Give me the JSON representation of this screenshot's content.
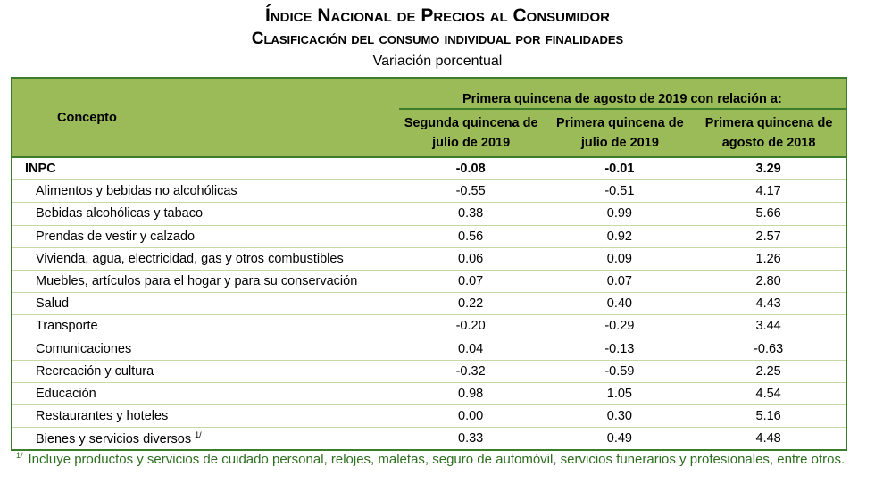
{
  "title": "Índice Nacional de Precios al Consumidor",
  "subtitle": "Clasificación del consumo individual por finalidades",
  "unit": "Variación porcentual",
  "table": {
    "concept_header": "Concepto",
    "group_header": "Primera quincena de agosto de 2019 con relación a:",
    "columns": [
      [
        "Segunda quincena de",
        "julio de 2019"
      ],
      [
        "Primera quincena de",
        "julio de 2019"
      ],
      [
        "Primera quincena de",
        "agosto de 2018"
      ]
    ],
    "rows": [
      {
        "label": "INPC",
        "values": [
          "-0.08",
          "-0.01",
          "3.29"
        ],
        "bold": true
      },
      {
        "label": "Alimentos y bebidas no alcohólicas",
        "values": [
          "-0.55",
          "-0.51",
          "4.17"
        ]
      },
      {
        "label": "Bebidas alcohólicas y tabaco",
        "values": [
          "0.38",
          "0.99",
          "5.66"
        ]
      },
      {
        "label": "Prendas de vestir y calzado",
        "values": [
          "0.56",
          "0.92",
          "2.57"
        ]
      },
      {
        "label": "Vivienda, agua, electricidad, gas y otros combustibles",
        "values": [
          "0.06",
          "0.09",
          "1.26"
        ]
      },
      {
        "label": "Muebles, artículos para el hogar y para su conservación",
        "values": [
          "0.07",
          "0.07",
          "2.80"
        ]
      },
      {
        "label": "Salud",
        "values": [
          "0.22",
          "0.40",
          "4.43"
        ]
      },
      {
        "label": "Transporte",
        "values": [
          "-0.20",
          "-0.29",
          "3.44"
        ]
      },
      {
        "label": "Comunicaciones",
        "values": [
          "0.04",
          "-0.13",
          "-0.63"
        ]
      },
      {
        "label": "Recreación y cultura",
        "values": [
          "-0.32",
          "-0.59",
          "2.25"
        ]
      },
      {
        "label": "Educación",
        "values": [
          "0.98",
          "1.05",
          "4.54"
        ]
      },
      {
        "label": "Restaurantes y hoteles",
        "values": [
          "0.00",
          "0.30",
          "5.16"
        ]
      },
      {
        "label": "Bienes y servicios diversos",
        "values": [
          "0.33",
          "0.49",
          "4.48"
        ],
        "note": "1/"
      }
    ]
  },
  "footnote": {
    "mark": "1/",
    "text": "Incluye productos y servicios de cuidado personal, relojes, maletas, seguro de automóvil, servicios funerarios y profesionales, entre otros."
  },
  "colors": {
    "header_bg": "#9bbb59",
    "border": "#3b7d2a",
    "footnote": "#2d6e1f"
  }
}
